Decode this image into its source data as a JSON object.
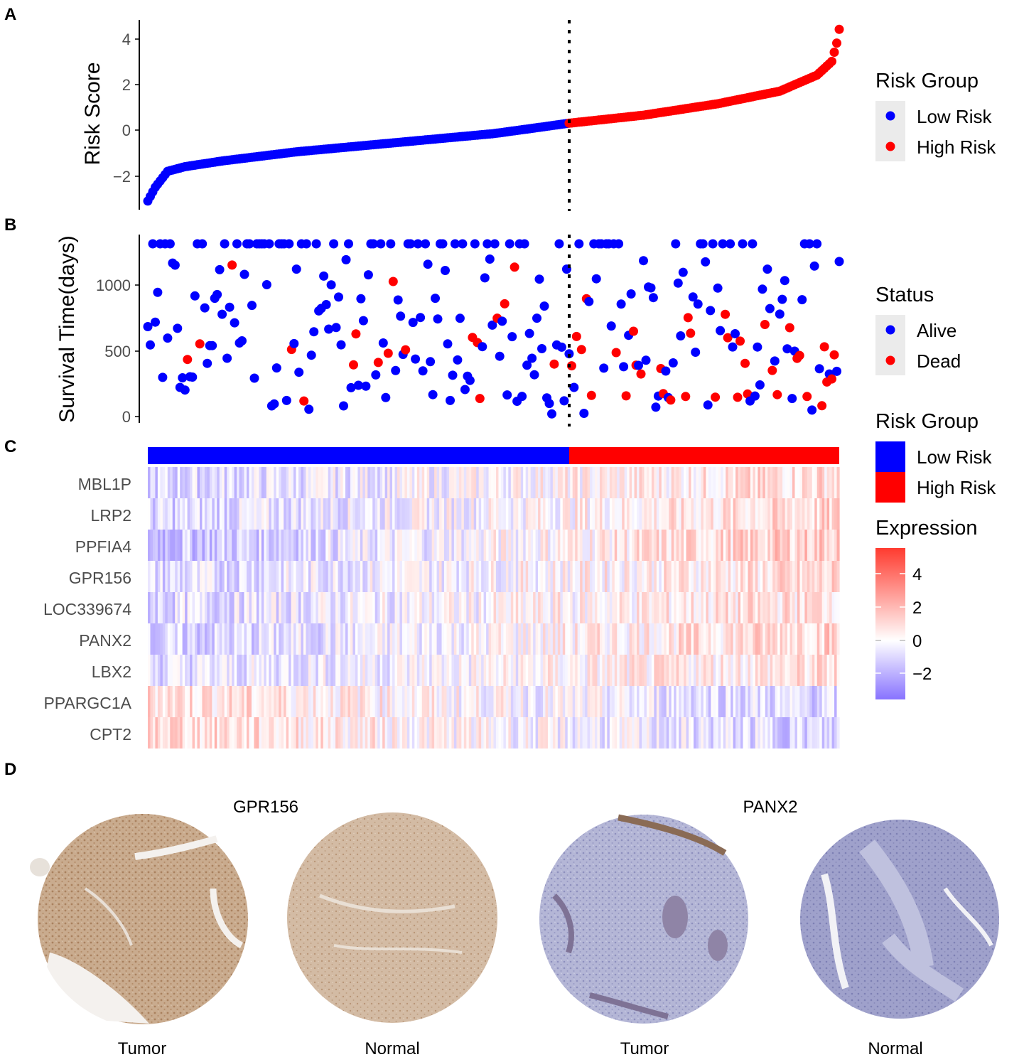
{
  "panel_labels": {
    "a": "A",
    "b": "B",
    "c": "C",
    "d": "D"
  },
  "colors": {
    "low": "#0000FF",
    "high": "#FF0000",
    "heat_low": "#8873FF",
    "heat_mid": "#FFFFFF",
    "heat_high": "#FF3B2F",
    "legend_bg": "#EBEBEB",
    "brown_tissue": "#C8A889",
    "blue_tissue": "#A7A9CF"
  },
  "chart_data": [
    {
      "id": "risk_score",
      "type": "scatter",
      "ylabel": "Risk Score",
      "xlabel": "",
      "ylim": [
        -3.2,
        4.7
      ],
      "yticks": [
        "4",
        "2",
        "0",
        "−2"
      ],
      "n_samples": 280,
      "n_low": 170,
      "cutoff_index": 170,
      "score_profile": {
        "min": -3.1,
        "max": 4.4,
        "knots_x": [
          0,
          3,
          8,
          15,
          30,
          60,
          100,
          140,
          170,
          200,
          230,
          255,
          270,
          276,
          278,
          279
        ],
        "knots_y": [
          -3.1,
          -2.5,
          -1.8,
          -1.6,
          -1.35,
          -0.95,
          -0.55,
          -0.15,
          0.3,
          0.65,
          1.15,
          1.7,
          2.4,
          3.0,
          3.8,
          4.4
        ]
      },
      "legend": {
        "title": "Risk Group",
        "items": [
          "Low Risk",
          "High Risk"
        ]
      }
    },
    {
      "id": "survival",
      "type": "scatter",
      "ylabel": "Survival Time(days)",
      "ylim": [
        -60,
        1400
      ],
      "yticks": [
        "1000",
        "500",
        "0"
      ],
      "max_time": 1310,
      "n_samples": 280,
      "dead_fraction_low": 0.1,
      "dead_fraction_high": 0.45,
      "legend": {
        "title": "Status",
        "items": [
          "Alive",
          "Dead"
        ]
      }
    },
    {
      "id": "heatmap",
      "type": "heatmap",
      "genes": [
        "MBL1P",
        "LRP2",
        "PPFIA4",
        "GPR156",
        "LOC339674",
        "PANX2",
        "LBX2",
        "PPARGC1A",
        "CPT2"
      ],
      "gene_trend": [
        0.9,
        0.9,
        1.3,
        0.8,
        0.8,
        1.1,
        0.7,
        -0.9,
        -1.0
      ],
      "n_samples": 280,
      "n_low": 170,
      "legend_group": {
        "title": "Risk Group",
        "items": [
          "Low Risk",
          "High Risk"
        ]
      },
      "legend_scale": {
        "title": "Expression",
        "ticks": [
          "4",
          "2",
          "0",
          "−2"
        ],
        "range": [
          -3.5,
          5.5
        ]
      }
    }
  ],
  "ihc": {
    "genes": [
      "GPR156",
      "PANX2"
    ],
    "labels": [
      "Tumor",
      "Normal",
      "Tumor",
      "Normal"
    ]
  }
}
